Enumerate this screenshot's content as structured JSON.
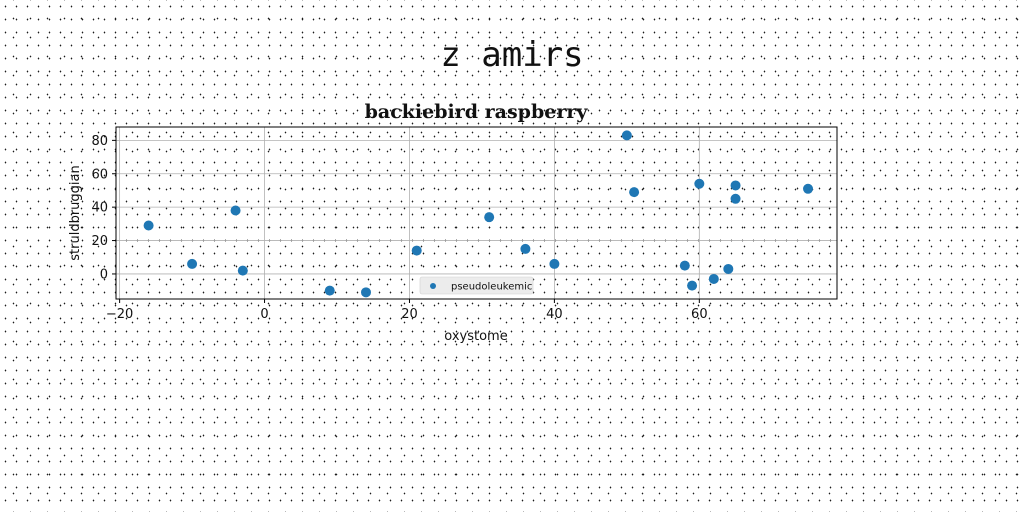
{
  "suptitle": "z amirs",
  "colors": {
    "series": "#1f77b4",
    "grid": "#b0b0b0",
    "axes": "#000000",
    "background": "#ffffff"
  },
  "chart_data": {
    "type": "scatter",
    "title": "backiebird raspberry",
    "xlabel": "oxystome",
    "ylabel": "struldbruggian",
    "xlim": [
      -20.5,
      79
    ],
    "ylim": [
      -15,
      88
    ],
    "xticks": [
      -20,
      0,
      20,
      40,
      60
    ],
    "yticks": [
      0,
      20,
      40,
      60,
      80
    ],
    "grid": true,
    "legend": {
      "placement": "lower-center",
      "entries": [
        "pseudoleukemic"
      ]
    },
    "series": [
      {
        "name": "pseudoleukemic",
        "x": [
          -16,
          -10,
          -4,
          -3,
          9,
          14,
          21,
          31,
          36,
          40,
          50,
          51,
          58,
          59,
          60,
          62,
          64,
          65,
          65,
          75
        ],
        "y": [
          29,
          6,
          38,
          2,
          -10,
          -11,
          14,
          34,
          15,
          6,
          83,
          49,
          5,
          -7,
          54,
          -3,
          3,
          53,
          45,
          51
        ]
      }
    ]
  }
}
